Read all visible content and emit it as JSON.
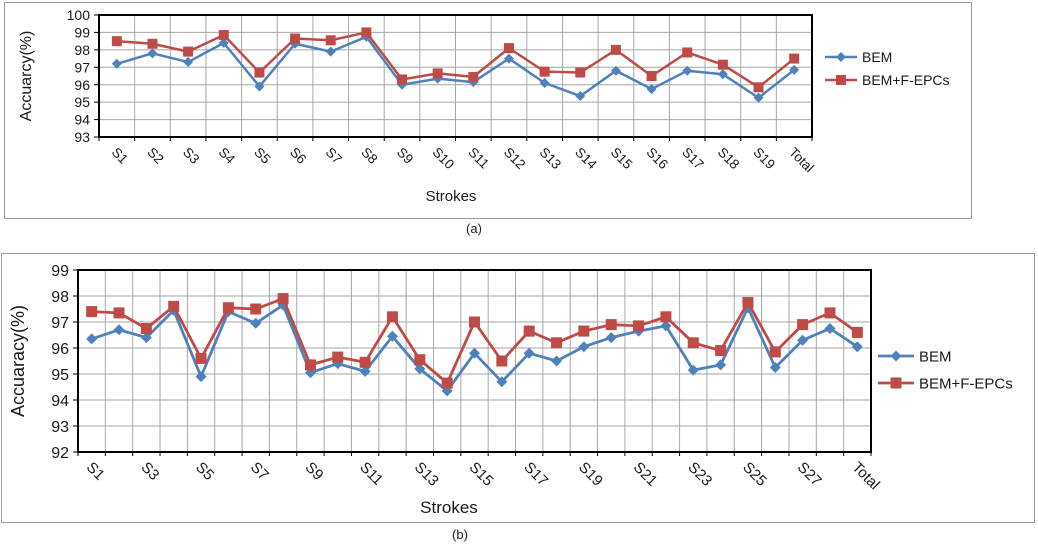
{
  "figure": {
    "caption_a": "(a)",
    "caption_b": "(b)"
  },
  "colors": {
    "bem": "#4F81BD",
    "bem_f_epcs": "#BF4B47",
    "gridline": "#A6A6A6",
    "plot_border": "#000000",
    "outer_border": "#9A9A9A",
    "text": "#1a1a1a"
  },
  "chart_data": [
    {
      "id": "a",
      "type": "line",
      "xlabel": "Strokes",
      "ylabel": "Accuarcy(%)",
      "ylim": [
        93,
        100
      ],
      "yticks": [
        93,
        94,
        95,
        96,
        97,
        98,
        99,
        100
      ],
      "grid": true,
      "legend_position": "right",
      "x_label_interval": 1,
      "categories": [
        "S1",
        "S2",
        "S3",
        "S4",
        "S5",
        "S6",
        "S7",
        "S8",
        "S9",
        "S10",
        "S11",
        "S12",
        "S13",
        "S14",
        "S15",
        "S16",
        "S17",
        "S18",
        "S19",
        "Total"
      ],
      "series": [
        {
          "name": "BEM",
          "marker": "diamond",
          "color_key": "bem",
          "values": [
            97.2,
            97.8,
            97.3,
            98.4,
            95.9,
            98.35,
            97.9,
            98.75,
            96.0,
            96.35,
            96.15,
            97.5,
            96.1,
            95.35,
            96.8,
            95.75,
            96.8,
            96.6,
            95.25,
            96.85
          ]
        },
        {
          "name": "BEM+F-EPCs",
          "marker": "square",
          "color_key": "bem_f_epcs",
          "values": [
            98.5,
            98.35,
            97.9,
            98.85,
            96.7,
            98.65,
            98.55,
            99.0,
            96.3,
            96.65,
            96.45,
            98.1,
            96.75,
            96.7,
            98.0,
            96.5,
            97.85,
            97.15,
            95.85,
            97.5
          ]
        }
      ]
    },
    {
      "id": "b",
      "type": "line",
      "xlabel": "Strokes",
      "ylabel": "Accuaracy(%)",
      "ylim": [
        92,
        99
      ],
      "yticks": [
        92,
        93,
        94,
        95,
        96,
        97,
        98,
        99
      ],
      "grid": true,
      "legend_position": "right",
      "x_label_interval": 2,
      "categories": [
        "S1",
        "S2",
        "S3",
        "S4",
        "S5",
        "S6",
        "S7",
        "S8",
        "S9",
        "S10",
        "S11",
        "S12",
        "S13",
        "S14",
        "S15",
        "S16",
        "S17",
        "S18",
        "S19",
        "S20",
        "S21",
        "S22",
        "S23",
        "S24",
        "S25",
        "S26",
        "S27",
        "S28",
        "Total"
      ],
      "series": [
        {
          "name": "BEM",
          "marker": "diamond",
          "color_key": "bem",
          "values": [
            96.35,
            96.7,
            96.4,
            97.45,
            94.9,
            97.4,
            96.95,
            97.65,
            95.05,
            95.4,
            95.1,
            96.45,
            95.2,
            94.35,
            95.8,
            94.7,
            95.8,
            95.5,
            96.05,
            96.4,
            96.65,
            96.85,
            95.15,
            95.35,
            97.55,
            95.25,
            96.3,
            96.75,
            96.05
          ]
        },
        {
          "name": "BEM+F-EPCs",
          "marker": "square",
          "color_key": "bem_f_epcs",
          "values": [
            97.4,
            97.35,
            96.75,
            97.6,
            95.6,
            97.55,
            97.5,
            97.9,
            95.35,
            95.65,
            95.45,
            97.2,
            95.55,
            94.65,
            97.0,
            95.5,
            96.65,
            96.2,
            96.65,
            96.9,
            96.85,
            97.2,
            96.2,
            95.9,
            97.75,
            95.85,
            96.9,
            97.35,
            96.6
          ]
        }
      ]
    }
  ]
}
